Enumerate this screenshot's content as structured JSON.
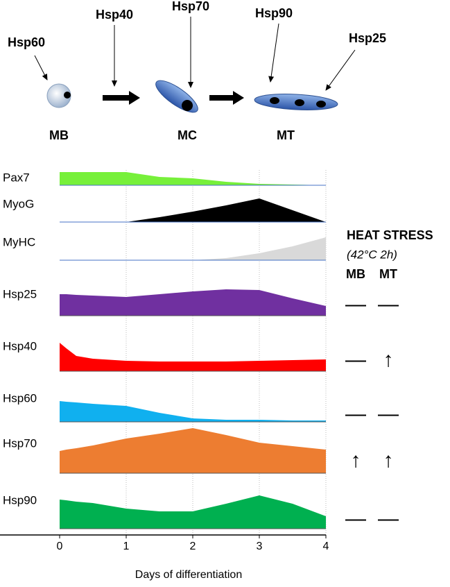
{
  "diagram": {
    "proteins": [
      "Hsp60",
      "Hsp40",
      "Hsp70",
      "Hsp90",
      "Hsp25"
    ],
    "stages": [
      "MB",
      "MC",
      "MT"
    ]
  },
  "chart_data": {
    "type": "ridgeline",
    "xlabel": "Days of differentiation",
    "x": [
      0,
      0.1,
      0.25,
      0.5,
      1,
      1.5,
      2,
      2.5,
      3,
      3.5,
      4
    ],
    "xlim": [
      0,
      4
    ],
    "xticks": [
      0,
      1,
      2,
      3,
      4
    ],
    "ylim": [
      0,
      100
    ],
    "grid": true,
    "series": [
      {
        "name": "Pax7",
        "color": "#77f03a",
        "values": [
          19,
          19,
          19,
          19,
          19,
          12,
          10,
          5,
          2,
          1,
          0
        ]
      },
      {
        "name": "MyoG",
        "color": "#000000",
        "values": [
          0,
          0,
          0,
          0,
          0,
          7,
          15,
          24,
          34,
          17,
          0
        ]
      },
      {
        "name": "MyHC",
        "color": "#d9d9d9",
        "values": [
          0,
          0,
          0,
          0,
          0,
          0,
          0,
          3,
          10,
          20,
          33
        ]
      },
      {
        "name": "Hsp25",
        "color": "#7030a0",
        "values": [
          31,
          31,
          30,
          29,
          27,
          31,
          35,
          38,
          37,
          25,
          14
        ]
      },
      {
        "name": "Hsp40",
        "color": "#ff0000",
        "values": [
          41,
          33,
          22,
          18,
          15,
          14,
          14,
          14,
          15,
          16,
          17
        ]
      },
      {
        "name": "Hsp60",
        "color": "#10b0ef",
        "values": [
          30,
          29,
          28,
          26,
          23,
          13,
          5,
          3,
          3,
          2,
          2
        ]
      },
      {
        "name": "Hsp70",
        "color": "#ed7d31",
        "values": [
          32,
          34,
          36,
          40,
          50,
          57,
          65,
          55,
          44,
          39,
          34
        ]
      },
      {
        "name": "Hsp90",
        "color": "#00b050",
        "values": [
          42,
          41,
          39,
          37,
          29,
          25,
          25,
          36,
          48,
          36,
          18
        ]
      }
    ]
  },
  "heat_stress": {
    "title": "HEAT STRESS",
    "subtitle": "(42°C 2h)",
    "columns": [
      "MB",
      "MT"
    ],
    "rows": [
      [
        "—",
        "—"
      ],
      [
        "—",
        "↑"
      ],
      [
        "—",
        "—"
      ],
      [
        "↑",
        "↑"
      ],
      [
        "—",
        "—"
      ]
    ]
  }
}
